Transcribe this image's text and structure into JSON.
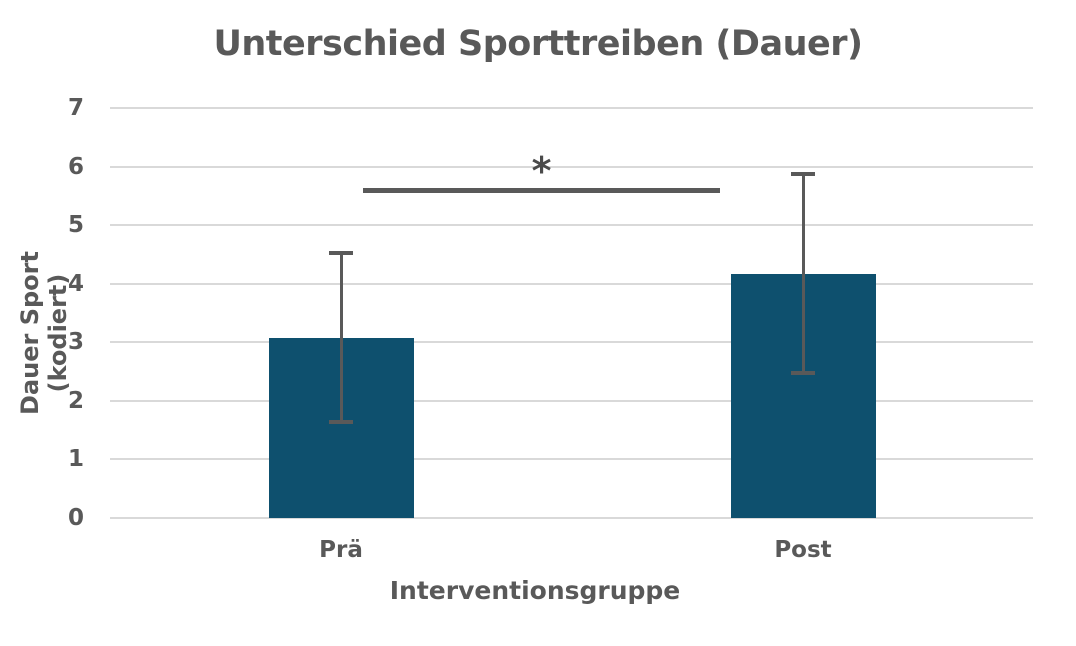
{
  "chart_data": {
    "type": "bar",
    "title": "Unterschied Sporttreiben (Dauer)",
    "xlabel": "Interventionsgruppe",
    "ylabel": "Dauer Sport (kodiert)",
    "categories": [
      "Prä",
      "Post"
    ],
    "values": [
      3.08,
      4.17
    ],
    "error_bars": {
      "upper": [
        4.53,
        5.87
      ],
      "lower": [
        1.64,
        2.47
      ]
    },
    "yticks": [
      0,
      1,
      2,
      3,
      4,
      5,
      6,
      7
    ],
    "ylim": [
      0,
      7
    ],
    "grid": "horizontal-light-gray",
    "legend_position": "none",
    "significance": {
      "label": "*",
      "y": 5.6
    },
    "colors": {
      "bar": "#0e506e",
      "error_bar": "#595959",
      "significance": "#595959",
      "gridline": "#d9d9d9",
      "text": "#595959",
      "background": "#ffffff"
    }
  }
}
